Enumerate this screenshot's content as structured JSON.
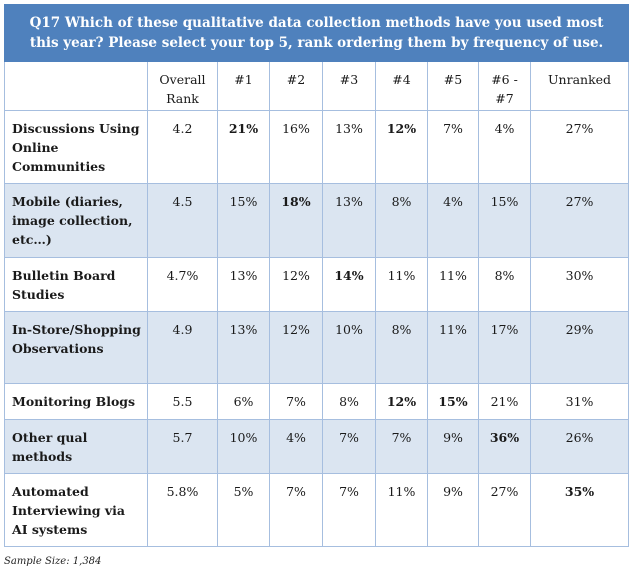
{
  "title": "Q17 Which of these qualitative data collection methods have you used most this year? Please select your top 5, rank ordering them by frequency of use.",
  "columns": [
    "",
    "Overall Rank",
    "#1",
    "#2",
    "#3",
    "#4",
    "#5",
    "#6 - #7",
    "Unranked"
  ],
  "rows": [
    {
      "label": "Discussions Using Online Communities",
      "values": [
        "4.2",
        "21%",
        "16%",
        "13%",
        "12%",
        "7%",
        "4%",
        "27%"
      ],
      "bold": [
        false,
        true,
        false,
        false,
        true,
        false,
        false,
        false
      ]
    },
    {
      "label": "Mobile (diaries, image collection, etc…)",
      "values": [
        "4.5",
        "15%",
        "18%",
        "13%",
        "8%",
        "4%",
        "15%",
        "27%"
      ],
      "bold": [
        false,
        false,
        true,
        false,
        false,
        false,
        false,
        false
      ]
    },
    {
      "label": "Bulletin Board Studies",
      "values": [
        "4.7%",
        "13%",
        "12%",
        "14%",
        "11%",
        "11%",
        "8%",
        "30%"
      ],
      "bold": [
        false,
        false,
        false,
        true,
        false,
        false,
        false,
        false
      ]
    },
    {
      "label": "In-Store/Shopping Observations",
      "values": [
        "4.9",
        "13%",
        "12%",
        "10%",
        "8%",
        "11%",
        "17%",
        "29%"
      ],
      "bold": [
        false,
        false,
        false,
        false,
        false,
        false,
        false,
        false
      ]
    },
    {
      "label": "Monitoring Blogs",
      "values": [
        "5.5",
        "6%",
        "7%",
        "8%",
        "12%",
        "15%",
        "21%",
        "31%"
      ],
      "bold": [
        false,
        false,
        false,
        false,
        true,
        true,
        false,
        false
      ]
    },
    {
      "label": "Other qual methods",
      "values": [
        "5.7",
        "10%",
        "4%",
        "7%",
        "7%",
        "9%",
        "36%",
        "26%"
      ],
      "bold": [
        false,
        false,
        false,
        false,
        false,
        false,
        true,
        false
      ]
    },
    {
      "label": "Automated Interviewing via AI systems",
      "values": [
        "5.8%",
        "5%",
        "7%",
        "7%",
        "11%",
        "9%",
        "27%",
        "35%"
      ],
      "bold": [
        false,
        false,
        false,
        false,
        false,
        false,
        false,
        true
      ]
    }
  ],
  "footer": "Sample Size: 1,384",
  "colors": {
    "header_bg": "#4f81bd",
    "shaded_row": "#dbe5f1",
    "border": "#a6bedf"
  }
}
